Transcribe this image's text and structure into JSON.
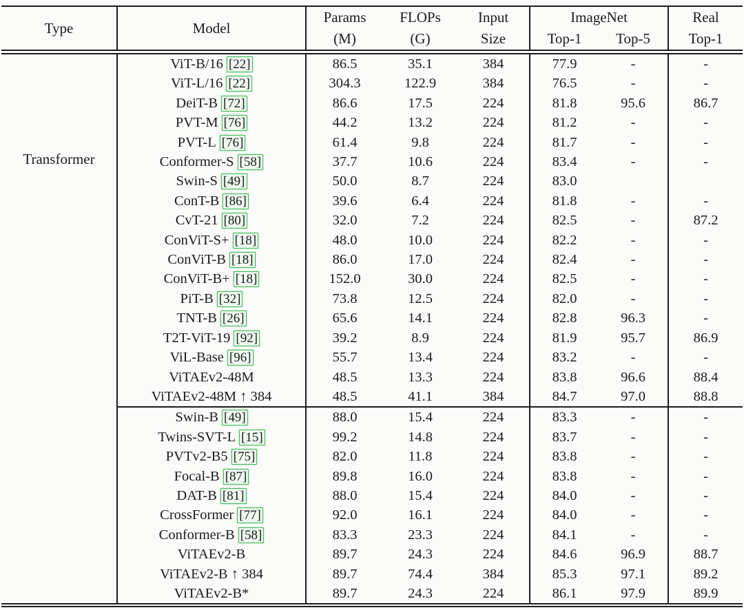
{
  "page": {
    "background": "#fbfbfa",
    "rule_color": "#1b1b1b",
    "text_color": "#1b1b1b",
    "citation_border_color": "#45b85c",
    "citation_fill_color": "#eef9ef"
  },
  "table": {
    "headers": {
      "type": "Type",
      "model": "Model",
      "params_line1": "Params",
      "params_line2": "(M)",
      "flops_line1": "FLOPs",
      "flops_line2": "(G)",
      "input_line1": "Input",
      "input_line2": "Size",
      "imagenet_group": "ImageNet",
      "imagenet_top1": "Top-1",
      "imagenet_top5": "Top-5",
      "real_line1": "Real",
      "real_line2": "Top-1"
    },
    "type_label": "Transformer",
    "groups": [
      {
        "rows": [
          {
            "model": "ViT-B/16",
            "cite": "22",
            "params": "86.5",
            "flops": "35.1",
            "input": "384",
            "top1": "77.9",
            "top5": "-",
            "real": "-"
          },
          {
            "model": "ViT-L/16",
            "cite": "22",
            "params": "304.3",
            "flops": "122.9",
            "input": "384",
            "top1": "76.5",
            "top5": "-",
            "real": "-"
          },
          {
            "model": "DeiT-B",
            "cite": "72",
            "params": "86.6",
            "flops": "17.5",
            "input": "224",
            "top1": "81.8",
            "top5": "95.6",
            "real": "86.7"
          },
          {
            "model": "PVT-M",
            "cite": "76",
            "params": "44.2",
            "flops": "13.2",
            "input": "224",
            "top1": "81.2",
            "top5": "-",
            "real": "-"
          },
          {
            "model": "PVT-L",
            "cite": "76",
            "params": "61.4",
            "flops": "9.8",
            "input": "224",
            "top1": "81.7",
            "top5": "-",
            "real": "-"
          },
          {
            "model": "Conformer-S",
            "cite": "58",
            "params": "37.7",
            "flops": "10.6",
            "input": "224",
            "top1": "83.4",
            "top5": "-",
            "real": "-"
          },
          {
            "model": "Swin-S",
            "cite": "49",
            "params": "50.0",
            "flops": "8.7",
            "input": "224",
            "top1": "83.0",
            "top5": "",
            "real": ""
          },
          {
            "model": "ConT-B",
            "cite": "86",
            "params": "39.6",
            "flops": "6.4",
            "input": "224",
            "top1": "81.8",
            "top5": "-",
            "real": "-"
          },
          {
            "model": "CvT-21",
            "cite": "80",
            "params": "32.0",
            "flops": "7.2",
            "input": "224",
            "top1": "82.5",
            "top5": "-",
            "real": "87.2"
          },
          {
            "model": "ConViT-S+",
            "cite": "18",
            "params": "48.0",
            "flops": "10.0",
            "input": "224",
            "top1": "82.2",
            "top5": "-",
            "real": "-"
          },
          {
            "model": "ConViT-B",
            "cite": "18",
            "params": "86.0",
            "flops": "17.0",
            "input": "224",
            "top1": "82.4",
            "top5": "-",
            "real": "-"
          },
          {
            "model": "ConViT-B+",
            "cite": "18",
            "params": "152.0",
            "flops": "30.0",
            "input": "224",
            "top1": "82.5",
            "top5": "-",
            "real": "-"
          },
          {
            "model": "PiT-B",
            "cite": "32",
            "params": "73.8",
            "flops": "12.5",
            "input": "224",
            "top1": "82.0",
            "top5": "-",
            "real": "-"
          },
          {
            "model": "TNT-B",
            "cite": "26",
            "params": "65.6",
            "flops": "14.1",
            "input": "224",
            "top1": "82.8",
            "top5": "96.3",
            "real": "-"
          },
          {
            "model": "T2T-ViT-19",
            "cite": "92",
            "params": "39.2",
            "flops": "8.9",
            "input": "224",
            "top1": "81.9",
            "top5": "95.7",
            "real": "86.9"
          },
          {
            "model": "ViL-Base",
            "cite": "96",
            "params": "55.7",
            "flops": "13.4",
            "input": "224",
            "top1": "83.2",
            "top5": "-",
            "real": "-"
          },
          {
            "model": "ViTAEv2-48M",
            "cite": "",
            "params": "48.5",
            "flops": "13.3",
            "input": "224",
            "top1": "83.8",
            "top5": "96.6",
            "real": "88.4"
          },
          {
            "model": "ViTAEv2-48M ↑ 384",
            "cite": "",
            "params": "48.5",
            "flops": "41.1",
            "input": "384",
            "top1": "84.7",
            "top5": "97.0",
            "real": "88.8"
          }
        ]
      },
      {
        "rows": [
          {
            "model": "Swin-B",
            "cite": "49",
            "params": "88.0",
            "flops": "15.4",
            "input": "224",
            "top1": "83.3",
            "top5": "-",
            "real": "-"
          },
          {
            "model": "Twins-SVT-L",
            "cite": "15",
            "params": "99.2",
            "flops": "14.8",
            "input": "224",
            "top1": "83.7",
            "top5": "-",
            "real": "-"
          },
          {
            "model": "PVTv2-B5",
            "cite": "75",
            "params": "82.0",
            "flops": "11.8",
            "input": "224",
            "top1": "83.8",
            "top5": "-",
            "real": "-"
          },
          {
            "model": "Focal-B",
            "cite": "87",
            "params": "89.8",
            "flops": "16.0",
            "input": "224",
            "top1": "83.8",
            "top5": "-",
            "real": "-"
          },
          {
            "model": "DAT-B",
            "cite": "81",
            "params": "88.0",
            "flops": "15.4",
            "input": "224",
            "top1": "84.0",
            "top5": "-",
            "real": "-"
          },
          {
            "model": "CrossFormer",
            "cite": "77",
            "params": "92.0",
            "flops": "16.1",
            "input": "224",
            "top1": "84.0",
            "top5": "-",
            "real": "-"
          },
          {
            "model": "Conformer-B",
            "cite": "58",
            "params": "83.3",
            "flops": "23.3",
            "input": "224",
            "top1": "84.1",
            "top5": "-",
            "real": "-"
          },
          {
            "model": "ViTAEv2-B",
            "cite": "",
            "params": "89.7",
            "flops": "24.3",
            "input": "224",
            "top1": "84.6",
            "top5": "96.9",
            "real": "88.7"
          },
          {
            "model": "ViTAEv2-B ↑ 384",
            "cite": "",
            "params": "89.7",
            "flops": "74.4",
            "input": "384",
            "top1": "85.3",
            "top5": "97.1",
            "real": "89.2"
          },
          {
            "model": "ViTAEv2-B*",
            "cite": "",
            "params": "89.7",
            "flops": "24.3",
            "input": "224",
            "top1": "86.1",
            "top5": "97.9",
            "real": "89.9"
          }
        ]
      }
    ]
  }
}
